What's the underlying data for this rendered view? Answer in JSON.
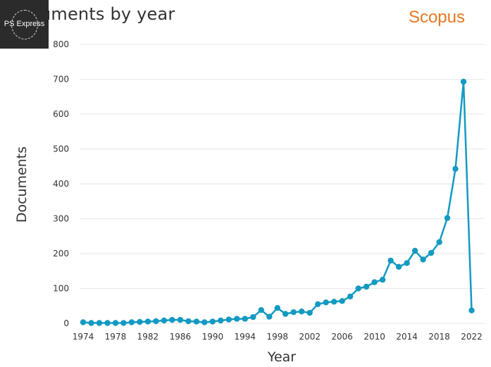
{
  "watermark": {
    "text": "PS Express"
  },
  "brand": {
    "name": "Scopus",
    "color": "#e87722"
  },
  "chart_data": {
    "type": "line",
    "title": "Documents by year",
    "xlabel": "Year",
    "ylabel": "Documents",
    "ylim": [
      0,
      800
    ],
    "xlim": [
      1974,
      2023
    ],
    "yticks": [
      0,
      100,
      200,
      300,
      400,
      500,
      600,
      700,
      800
    ],
    "xticks": [
      1974,
      1978,
      1982,
      1986,
      1990,
      1994,
      1998,
      2002,
      2006,
      2010,
      2014,
      2018,
      2022
    ],
    "grid": true,
    "line_color": "#139ac2",
    "series": [
      {
        "name": "Documents",
        "x": [
          1974,
          1975,
          1976,
          1977,
          1978,
          1979,
          1980,
          1981,
          1982,
          1983,
          1984,
          1985,
          1986,
          1987,
          1988,
          1989,
          1990,
          1991,
          1992,
          1993,
          1994,
          1995,
          1996,
          1997,
          1998,
          1999,
          2000,
          2001,
          2002,
          2003,
          2004,
          2005,
          2006,
          2007,
          2008,
          2009,
          2010,
          2011,
          2012,
          2013,
          2014,
          2015,
          2016,
          2017,
          2018,
          2019,
          2020,
          2021,
          2022,
          2023
        ],
        "values": [
          3,
          1,
          1,
          1,
          1,
          1,
          3,
          4,
          5,
          6,
          8,
          10,
          10,
          6,
          5,
          3,
          5,
          8,
          11,
          13,
          13,
          18,
          38,
          19,
          44,
          27,
          32,
          34,
          30,
          55,
          60,
          62,
          64,
          77,
          100,
          105,
          118,
          125,
          180,
          162,
          173,
          208,
          183,
          202,
          233,
          302,
          443,
          693,
          37,
          null
        ]
      }
    ]
  }
}
